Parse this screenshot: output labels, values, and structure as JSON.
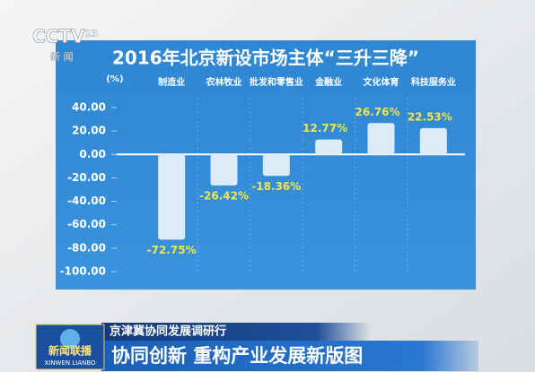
{
  "broadcast": {
    "channel": "CCTV",
    "channel_number": "13",
    "channel_name": "新 闻",
    "program": "新闻联播",
    "program_pinyin": "XINWEN LIANBO",
    "segment": "京津冀协同发展调研行",
    "headline": "协同创新 重构产业发展新版图"
  },
  "chart_data": {
    "type": "bar",
    "title": "2016年北京新设市场主体“三升三降”",
    "y_label": "(%)",
    "categories": [
      "制造业",
      "农林牧业",
      "批发和零售业",
      "金融业",
      "文化体育",
      "科技服务业"
    ],
    "values": [
      -72.75,
      -26.42,
      -18.36,
      12.77,
      26.76,
      22.53
    ],
    "value_labels": [
      "-72.75%",
      "-26.42%",
      "-18.36%",
      "12.77%",
      "26.76%",
      "22.53%"
    ],
    "color": "#dcebf8",
    "ylim": [
      -100,
      40
    ],
    "yticks": [
      {
        "value": 40,
        "label": "40.00"
      },
      {
        "value": 20,
        "label": "20.00"
      },
      {
        "value": 0,
        "label": "0.00"
      },
      {
        "value": -20,
        "label": "-20.00"
      },
      {
        "value": -40,
        "label": "-40.00"
      },
      {
        "value": -60,
        "label": "-60.00"
      },
      {
        "value": -80,
        "label": "-80.00"
      },
      {
        "value": -100,
        "label": "-100.00"
      }
    ]
  }
}
